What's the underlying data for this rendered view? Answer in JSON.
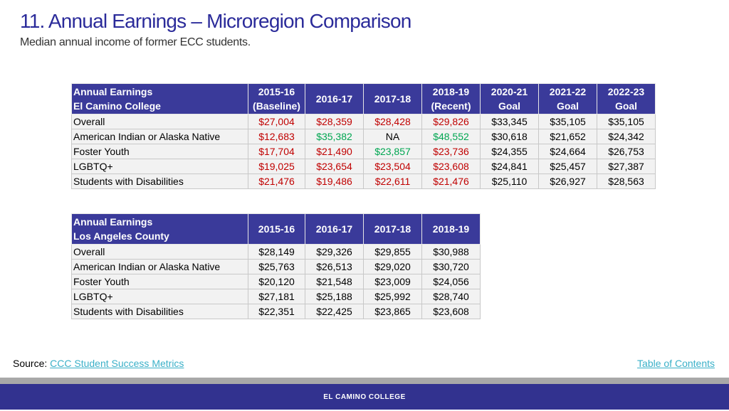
{
  "header": {
    "title": "11. Annual Earnings – Microregion Comparison",
    "subtitle": "Median annual income of former ECC students."
  },
  "colors": {
    "title": "#2b2b9a",
    "header_bg": "#3a3a9a",
    "red": "#c00000",
    "green": "#00a651",
    "link": "#3ab0c8",
    "footer_bg": "#32328f"
  },
  "table1": {
    "header_line1": "Annual Earnings",
    "header_line2": "El Camino College",
    "columns": [
      {
        "line1": "2015-16",
        "line2": "(Baseline)"
      },
      {
        "line1": "2016-17",
        "line2": ""
      },
      {
        "line1": "2017-18",
        "line2": ""
      },
      {
        "line1": "2018-19",
        "line2": "(Recent)"
      },
      {
        "line1": "2020-21",
        "line2": "Goal"
      },
      {
        "line1": "2021-22",
        "line2": "Goal"
      },
      {
        "line1": "2022-23",
        "line2": "Goal"
      }
    ],
    "rows": [
      {
        "label": "Overall",
        "cells": [
          {
            "v": "$27,004",
            "c": "red"
          },
          {
            "v": "$28,359",
            "c": "red"
          },
          {
            "v": "$28,428",
            "c": "red"
          },
          {
            "v": "$29,826",
            "c": "red"
          },
          {
            "v": "$33,345",
            "c": ""
          },
          {
            "v": "$35,105",
            "c": ""
          },
          {
            "v": "$35,105",
            "c": ""
          }
        ]
      },
      {
        "label": "American Indian or Alaska Native",
        "cells": [
          {
            "v": "$12,683",
            "c": "red"
          },
          {
            "v": "$35,382",
            "c": "green"
          },
          {
            "v": "NA",
            "c": ""
          },
          {
            "v": "$48,552",
            "c": "green"
          },
          {
            "v": "$30,618",
            "c": ""
          },
          {
            "v": "$21,652",
            "c": ""
          },
          {
            "v": "$24,342",
            "c": ""
          }
        ]
      },
      {
        "label": "Foster Youth",
        "cells": [
          {
            "v": "$17,704",
            "c": "red"
          },
          {
            "v": "$21,490",
            "c": "red"
          },
          {
            "v": "$23,857",
            "c": "green"
          },
          {
            "v": "$23,736",
            "c": "red"
          },
          {
            "v": "$24,355",
            "c": ""
          },
          {
            "v": "$24,664",
            "c": ""
          },
          {
            "v": "$26,753",
            "c": ""
          }
        ]
      },
      {
        "label": "LGBTQ+",
        "cells": [
          {
            "v": "$19,025",
            "c": "red"
          },
          {
            "v": "$23,654",
            "c": "red"
          },
          {
            "v": "$23,504",
            "c": "red"
          },
          {
            "v": "$23,608",
            "c": "red"
          },
          {
            "v": "$24,841",
            "c": ""
          },
          {
            "v": "$25,457",
            "c": ""
          },
          {
            "v": "$27,387",
            "c": ""
          }
        ]
      },
      {
        "label": "Students with Disabilities",
        "cells": [
          {
            "v": "$21,476",
            "c": "red"
          },
          {
            "v": "$19,486",
            "c": "red"
          },
          {
            "v": "$22,611",
            "c": "red"
          },
          {
            "v": "$21,476",
            "c": "red"
          },
          {
            "v": "$25,110",
            "c": ""
          },
          {
            "v": "$26,927",
            "c": ""
          },
          {
            "v": "$28,563",
            "c": ""
          }
        ]
      }
    ]
  },
  "table2": {
    "header_line1": "Annual Earnings",
    "header_line2": "Los Angeles County",
    "columns": [
      {
        "line1": "2015-16",
        "line2": ""
      },
      {
        "line1": "2016-17",
        "line2": ""
      },
      {
        "line1": "2017-18",
        "line2": ""
      },
      {
        "line1": "2018-19",
        "line2": ""
      }
    ],
    "rows": [
      {
        "label": "Overall",
        "cells": [
          {
            "v": "$28,149",
            "c": ""
          },
          {
            "v": "$29,326",
            "c": ""
          },
          {
            "v": "$29,855",
            "c": ""
          },
          {
            "v": "$30,988",
            "c": ""
          }
        ]
      },
      {
        "label": "American Indian or Alaska Native",
        "cells": [
          {
            "v": "$25,763",
            "c": ""
          },
          {
            "v": "$26,513",
            "c": ""
          },
          {
            "v": "$29,020",
            "c": ""
          },
          {
            "v": "$30,720",
            "c": ""
          }
        ]
      },
      {
        "label": "Foster Youth",
        "cells": [
          {
            "v": "$20,120",
            "c": ""
          },
          {
            "v": "$21,548",
            "c": ""
          },
          {
            "v": "$23,009",
            "c": ""
          },
          {
            "v": "$24,056",
            "c": ""
          }
        ]
      },
      {
        "label": "LGBTQ+",
        "cells": [
          {
            "v": "$27,181",
            "c": ""
          },
          {
            "v": "$25,188",
            "c": ""
          },
          {
            "v": "$25,992",
            "c": ""
          },
          {
            "v": "$28,740",
            "c": ""
          }
        ]
      },
      {
        "label": "Students with Disabilities",
        "cells": [
          {
            "v": "$22,351",
            "c": ""
          },
          {
            "v": "$22,425",
            "c": ""
          },
          {
            "v": "$23,865",
            "c": ""
          },
          {
            "v": "$23,608",
            "c": ""
          }
        ]
      }
    ]
  },
  "source": {
    "label": "Source:",
    "link_text": "CCC Student Success Metrics"
  },
  "nav": {
    "toc_label": "Table of Contents"
  },
  "footer": {
    "brand": "EL CAMINO COLLEGE"
  }
}
